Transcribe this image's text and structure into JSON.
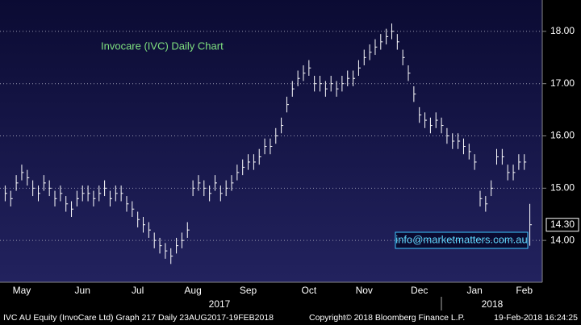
{
  "chart_data": {
    "type": "ohlc",
    "title": "Invocare (IVC) Daily Chart",
    "watermark": "info@marketmatters.com.au",
    "footer": {
      "left": "IVC AU Equity (InvoCare Ltd) Graph 217  Daily 23AUG2017-19FEB2018",
      "middle": "Copyright© 2018 Bloomberg Finance L.P.",
      "right": "19-Feb-2018 16:24:25"
    },
    "year_labels": [
      "2017",
      "2018"
    ],
    "categories": [
      null,
      null,
      null,
      "May",
      null,
      null,
      null,
      null,
      null,
      null,
      null,
      null,
      null,
      null,
      "Jun",
      null,
      null,
      null,
      null,
      null,
      null,
      null,
      null,
      null,
      "Jul",
      null,
      null,
      null,
      null,
      null,
      null,
      null,
      null,
      null,
      "Aug",
      null,
      null,
      null,
      null,
      null,
      null,
      null,
      null,
      null,
      "Sep",
      null,
      null,
      null,
      null,
      null,
      null,
      null,
      null,
      null,
      null,
      "Oct",
      null,
      null,
      null,
      null,
      null,
      null,
      null,
      null,
      null,
      "Nov",
      null,
      null,
      null,
      null,
      null,
      null,
      null,
      null,
      null,
      "Dec",
      null,
      null,
      null,
      null,
      null,
      null,
      null,
      null,
      null,
      "Jan",
      null,
      null,
      null,
      null,
      null,
      null,
      null,
      null,
      "Feb",
      null
    ],
    "high": [
      15.05,
      14.95,
      15.25,
      15.45,
      15.35,
      15.15,
      15.05,
      15.25,
      15.15,
      14.95,
      15.05,
      14.85,
      14.75,
      14.95,
      15.05,
      15.05,
      14.95,
      15.05,
      15.15,
      14.95,
      15.05,
      15.05,
      14.85,
      14.75,
      14.55,
      14.45,
      14.35,
      14.15,
      14.05,
      13.95,
      13.85,
      14.05,
      14.15,
      14.35,
      15.15,
      15.25,
      15.15,
      15.05,
      15.25,
      15.05,
      15.15,
      15.25,
      15.45,
      15.55,
      15.65,
      15.65,
      15.75,
      15.95,
      15.95,
      16.15,
      16.35,
      16.75,
      17.05,
      17.25,
      17.35,
      17.45,
      17.15,
      17.15,
      17.05,
      17.15,
      17.05,
      17.15,
      17.25,
      17.25,
      17.45,
      17.65,
      17.75,
      17.85,
      17.95,
      18.05,
      18.15,
      17.95,
      17.65,
      17.35,
      16.95,
      16.55,
      16.45,
      16.35,
      16.45,
      16.35,
      16.15,
      16.05,
      16.05,
      15.95,
      15.85,
      15.65,
      14.95,
      14.85,
      15.15,
      15.75,
      15.75,
      15.45,
      15.45,
      15.65,
      15.65,
      14.7
    ],
    "low": [
      14.75,
      14.65,
      14.95,
      15.15,
      15.05,
      14.85,
      14.75,
      14.95,
      14.85,
      14.65,
      14.75,
      14.55,
      14.45,
      14.65,
      14.75,
      14.75,
      14.65,
      14.75,
      14.85,
      14.65,
      14.75,
      14.75,
      14.55,
      14.45,
      14.25,
      14.15,
      14.05,
      13.85,
      13.75,
      13.65,
      13.55,
      13.75,
      13.85,
      14.05,
      14.85,
      14.95,
      14.85,
      14.75,
      14.95,
      14.75,
      14.85,
      14.95,
      15.15,
      15.25,
      15.35,
      15.35,
      15.45,
      15.65,
      15.65,
      15.85,
      16.05,
      16.45,
      16.75,
      16.95,
      17.05,
      17.15,
      16.85,
      16.85,
      16.75,
      16.85,
      16.75,
      16.85,
      16.95,
      16.95,
      17.15,
      17.35,
      17.45,
      17.55,
      17.65,
      17.75,
      17.85,
      17.65,
      17.35,
      17.05,
      16.65,
      16.25,
      16.15,
      16.05,
      16.15,
      16.05,
      15.85,
      15.75,
      15.75,
      15.65,
      15.55,
      15.35,
      14.65,
      14.55,
      14.85,
      15.45,
      15.45,
      15.15,
      15.15,
      15.35,
      15.35,
      13.9
    ],
    "close": [
      14.9,
      14.8,
      15.1,
      15.3,
      15.2,
      15.0,
      14.9,
      15.1,
      15.0,
      14.8,
      14.9,
      14.7,
      14.6,
      14.8,
      14.9,
      14.9,
      14.8,
      14.9,
      15.0,
      14.8,
      14.9,
      14.9,
      14.7,
      14.6,
      14.4,
      14.3,
      14.2,
      14.0,
      13.9,
      13.8,
      13.7,
      13.9,
      14.0,
      14.2,
      15.0,
      15.1,
      15.0,
      14.9,
      15.1,
      14.9,
      15.0,
      15.1,
      15.3,
      15.4,
      15.5,
      15.5,
      15.6,
      15.8,
      15.8,
      16.0,
      16.2,
      16.6,
      16.9,
      17.1,
      17.2,
      17.3,
      17.0,
      17.0,
      16.9,
      17.0,
      16.9,
      17.0,
      17.1,
      17.1,
      17.3,
      17.5,
      17.6,
      17.7,
      17.8,
      17.9,
      18.0,
      17.8,
      17.5,
      17.2,
      16.8,
      16.4,
      16.3,
      16.2,
      16.3,
      16.2,
      16.0,
      15.9,
      15.9,
      15.8,
      15.7,
      15.5,
      14.8,
      14.7,
      15.0,
      15.6,
      15.6,
      15.3,
      15.3,
      15.5,
      15.5,
      14.3
    ],
    "color": "#ffffff",
    "last_price": {
      "value": 14.3,
      "label": "14.30"
    },
    "ylim": [
      13.2,
      18.6
    ],
    "yticks": [
      {
        "value": 14,
        "label": "14.00"
      },
      {
        "value": 15,
        "label": "15.00"
      },
      {
        "value": 16,
        "label": "16.00"
      },
      {
        "value": 17,
        "label": "17.00"
      },
      {
        "value": 18,
        "label": "18.00"
      }
    ],
    "grid": true
  }
}
